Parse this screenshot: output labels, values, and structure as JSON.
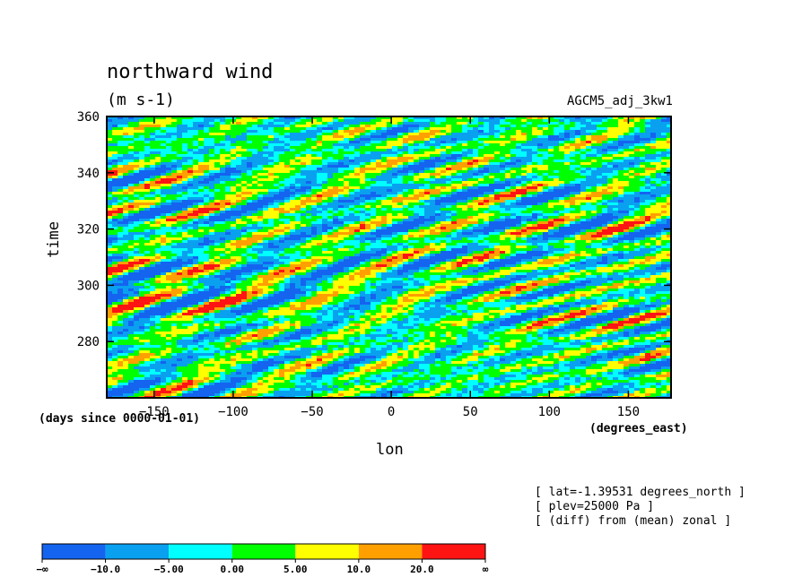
{
  "chart_data": {
    "type": "heatmap",
    "title": "northward wind",
    "units": "(m s-1)",
    "run_label": "AGCM5_adj_3kw1",
    "xlabel": "lon",
    "ylabel": "time",
    "x_units": "(degrees_east)",
    "y_units": "(days since 0000-01-01)",
    "xlim": [
      -180,
      177
    ],
    "ylim": [
      260,
      360
    ],
    "x_ticks": [
      -150,
      -100,
      -50,
      0,
      50,
      100,
      150
    ],
    "y_ticks": [
      280,
      300,
      320,
      340,
      360
    ],
    "notes": [
      "[ lat=-1.39531 degrees_north ]",
      "[ plev=25000 Pa ]",
      "[ (diff) from (mean) zonal ]"
    ],
    "levels": [
      "-∞",
      "-10.0",
      "-5.00",
      "0.00",
      "5.00",
      "10.0",
      "20.0",
      "∞"
    ],
    "colors": [
      "#1464f0",
      "#0aa0f0",
      "#00ffff",
      "#00ff00",
      "#ffff00",
      "#ffa000",
      "#ff1414"
    ]
  }
}
